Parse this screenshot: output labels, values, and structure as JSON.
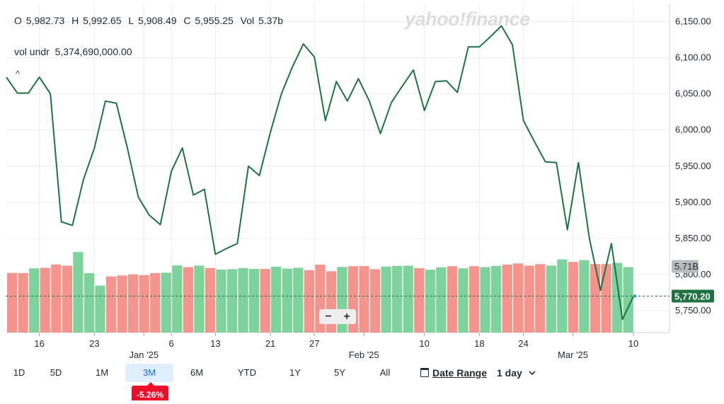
{
  "header": {
    "open_label": "O",
    "open_value": "5,982.73",
    "high_label": "H",
    "high_value": "5,992.65",
    "low_label": "L",
    "low_value": "5,908.49",
    "close_label": "C",
    "close_value": "5,955.25",
    "vol_label": "Vol",
    "vol_value": "5.37b",
    "vol_undr_label": "vol undr",
    "vol_undr_value": "5,374,690,000.00",
    "watermark": "yahoo!finance"
  },
  "zoom": {
    "minus": "−",
    "plus": "+"
  },
  "ranges": [
    {
      "label": "1D",
      "active": false
    },
    {
      "label": "5D",
      "active": false
    },
    {
      "label": "1M",
      "active": false
    },
    {
      "label": "3M",
      "active": true
    },
    {
      "label": "6M",
      "active": false
    },
    {
      "label": "YTD",
      "active": false
    },
    {
      "label": "1Y",
      "active": false
    },
    {
      "label": "5Y",
      "active": false
    },
    {
      "label": "All",
      "active": false
    }
  ],
  "date_range_label": "Date Range",
  "interval_label": "1 day",
  "interval_icon": "chevron-down-icon",
  "change_badge": "-5.26%",
  "colors": {
    "line": "#1e7341",
    "vol_up": "#7ed29c",
    "vol_down": "#f5948c",
    "last_price_bg": "#1e7341",
    "vol_badge_bg": "#b9bcbf",
    "badge_down": "#eb0f29",
    "active_range_bg": "#e0efff"
  },
  "chart_data": {
    "type": "line",
    "y_ticks": [
      "6,150.00",
      "6,100.00",
      "6,050.00",
      "6,000.00",
      "5,950.00",
      "5,900.00",
      "5,850.00",
      "5,800.00",
      "5,750.00"
    ],
    "y_tick_values": [
      6150,
      6100,
      6050,
      6000,
      5950,
      5900,
      5850,
      5800,
      5750
    ],
    "ylim": [
      5710,
      6170
    ],
    "x_ticks": [
      {
        "label": "16",
        "index": 3,
        "row": 1
      },
      {
        "label": "23",
        "index": 8,
        "row": 1
      },
      {
        "label": "Jan '25",
        "index": 12.5,
        "row": 2
      },
      {
        "label": "6",
        "index": 15,
        "row": 1
      },
      {
        "label": "13",
        "index": 19,
        "row": 1
      },
      {
        "label": "21",
        "index": 24,
        "row": 1
      },
      {
        "label": "27",
        "index": 28,
        "row": 1
      },
      {
        "label": "Feb '25",
        "index": 32.5,
        "row": 2
      },
      {
        "label": "10",
        "index": 38,
        "row": 1
      },
      {
        "label": "18",
        "index": 43,
        "row": 1
      },
      {
        "label": "24",
        "index": 47,
        "row": 1
      },
      {
        "label": "Mar '25",
        "index": 51.5,
        "row": 2
      },
      {
        "label": "10",
        "index": 57,
        "row": 1
      }
    ],
    "last_price_label": "5,770.20",
    "last_price_value": 5770.2,
    "volume_badge_label": "5.71B",
    "volume_badge_value": 5.71,
    "series": [
      {
        "values": [
          6073,
          6051,
          6051,
          6073,
          6050,
          5873,
          5868,
          5931,
          5975,
          6040,
          6037,
          5975,
          5907,
          5882,
          5869,
          5943,
          5975,
          5910,
          5918,
          5828,
          5836,
          5843,
          5950,
          5937,
          5997,
          6050,
          6087,
          6119,
          6101,
          6013,
          6067,
          6040,
          6071,
          6040,
          5995,
          6038,
          6061,
          6083,
          6027,
          6067,
          6068,
          6052,
          6115,
          6115,
          6129,
          6144,
          6118,
          6013,
          5984,
          5956,
          5955,
          5862,
          5955,
          5850,
          5778,
          5843,
          5738,
          5770
        ]
      }
    ],
    "volume": {
      "values": [
        5.2,
        5.19,
        5.6,
        5.65,
        5.94,
        5.84,
        7.02,
        5.18,
        4.1,
        4.89,
        4.98,
        5.07,
        5.01,
        5.19,
        5.22,
        5.86,
        5.71,
        5.84,
        5.63,
        5.5,
        5.53,
        5.62,
        5.55,
        5.55,
        5.75,
        5.58,
        5.65,
        5.44,
        5.92,
        5.35,
        5.72,
        5.79,
        5.8,
        5.53,
        5.76,
        5.82,
        5.83,
        5.62,
        5.48,
        5.69,
        5.79,
        5.6,
        5.79,
        5.71,
        5.82,
        5.93,
        6.03,
        5.84,
        5.97,
        5.84,
        6.38,
        6.16,
        6.32,
        5.98,
        5.97,
        6.08,
        5.71
      ],
      "directions": [
        "down",
        "down",
        "up",
        "down",
        "down",
        "down",
        "up",
        "up",
        "up",
        "down",
        "down",
        "down",
        "down",
        "down",
        "up",
        "up",
        "down",
        "up",
        "down",
        "up",
        "up",
        "up",
        "up",
        "down",
        "up",
        "up",
        "up",
        "down",
        "down",
        "down",
        "up",
        "down",
        "down",
        "down",
        "up",
        "up",
        "up",
        "down",
        "up",
        "up",
        "down",
        "up",
        "down",
        "up",
        "up",
        "down",
        "down",
        "down",
        "down",
        "up",
        "up",
        "down",
        "up",
        "down",
        "down",
        "up",
        "up"
      ]
    }
  }
}
